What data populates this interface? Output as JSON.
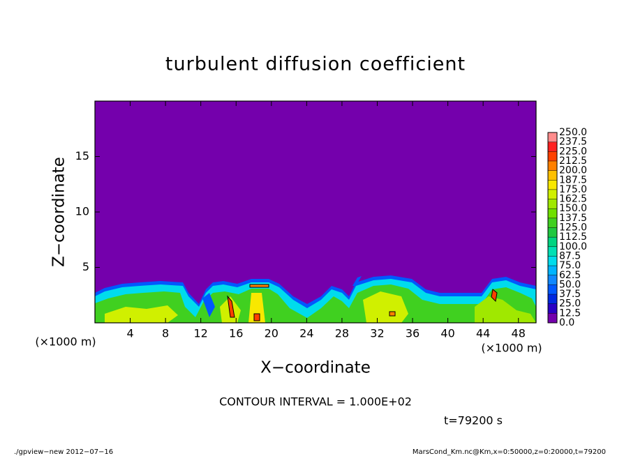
{
  "chart_data": {
    "type": "contour",
    "title": "turbulent diffusion coefficient",
    "x_label": "X−coordinate",
    "y_label": "Z−coordinate",
    "x_unit_left": "(×1000 m)",
    "x_unit_right": "(×1000 m)",
    "xlim": [
      0,
      50
    ],
    "xticks": [
      4,
      8,
      12,
      16,
      20,
      24,
      28,
      32,
      36,
      40,
      44,
      48
    ],
    "ylim": [
      0,
      20
    ],
    "yticks": [
      5,
      10,
      15
    ],
    "contour_note": "CONTOUR INTERVAL = 1.000E+02",
    "time_label": "t=79200 s",
    "footer_left": "./gpview−new  2012−07−16",
    "footer_right": "MarsCond_Km.nc@Km,x=0:50000,z=0:20000,t=79200",
    "colorbar": {
      "levels": [
        {
          "value": 0,
          "label": "0.0"
        },
        {
          "value": 12.5,
          "label": "12.5"
        },
        {
          "value": 25,
          "label": "25.0"
        },
        {
          "value": 37.5,
          "label": "37.5"
        },
        {
          "value": 50,
          "label": "50.0"
        },
        {
          "value": 62.5,
          "label": "62.5"
        },
        {
          "value": 75,
          "label": "75.0"
        },
        {
          "value": 87.5,
          "label": "87.5"
        },
        {
          "value": 100,
          "label": "100.0"
        },
        {
          "value": 112.5,
          "label": "112.5"
        },
        {
          "value": 125,
          "label": "125.0"
        },
        {
          "value": 137.5,
          "label": "137.5"
        },
        {
          "value": 150,
          "label": "150.0"
        },
        {
          "value": 162.5,
          "label": "162.5"
        },
        {
          "value": 175,
          "label": "175.0"
        },
        {
          "value": 187.5,
          "label": "187.5"
        },
        {
          "value": 200,
          "label": "200.0"
        },
        {
          "value": 212.5,
          "label": "212.5"
        },
        {
          "value": 225,
          "label": "225.0"
        },
        {
          "value": 237.5,
          "label": "237.5"
        },
        {
          "value": 250,
          "label": "250.0"
        }
      ],
      "colors": [
        "#7400ac",
        "#2a00c4",
        "#0028e0",
        "#0058ff",
        "#1088ff",
        "#00b4ff",
        "#00dcec",
        "#00e0b4",
        "#00d480",
        "#20c840",
        "#40d020",
        "#70e000",
        "#a0e800",
        "#d0f000",
        "#f8e800",
        "#ffc000",
        "#ff8000",
        "#ff4000",
        "#ff2020",
        "#ff8c8c"
      ]
    }
  }
}
